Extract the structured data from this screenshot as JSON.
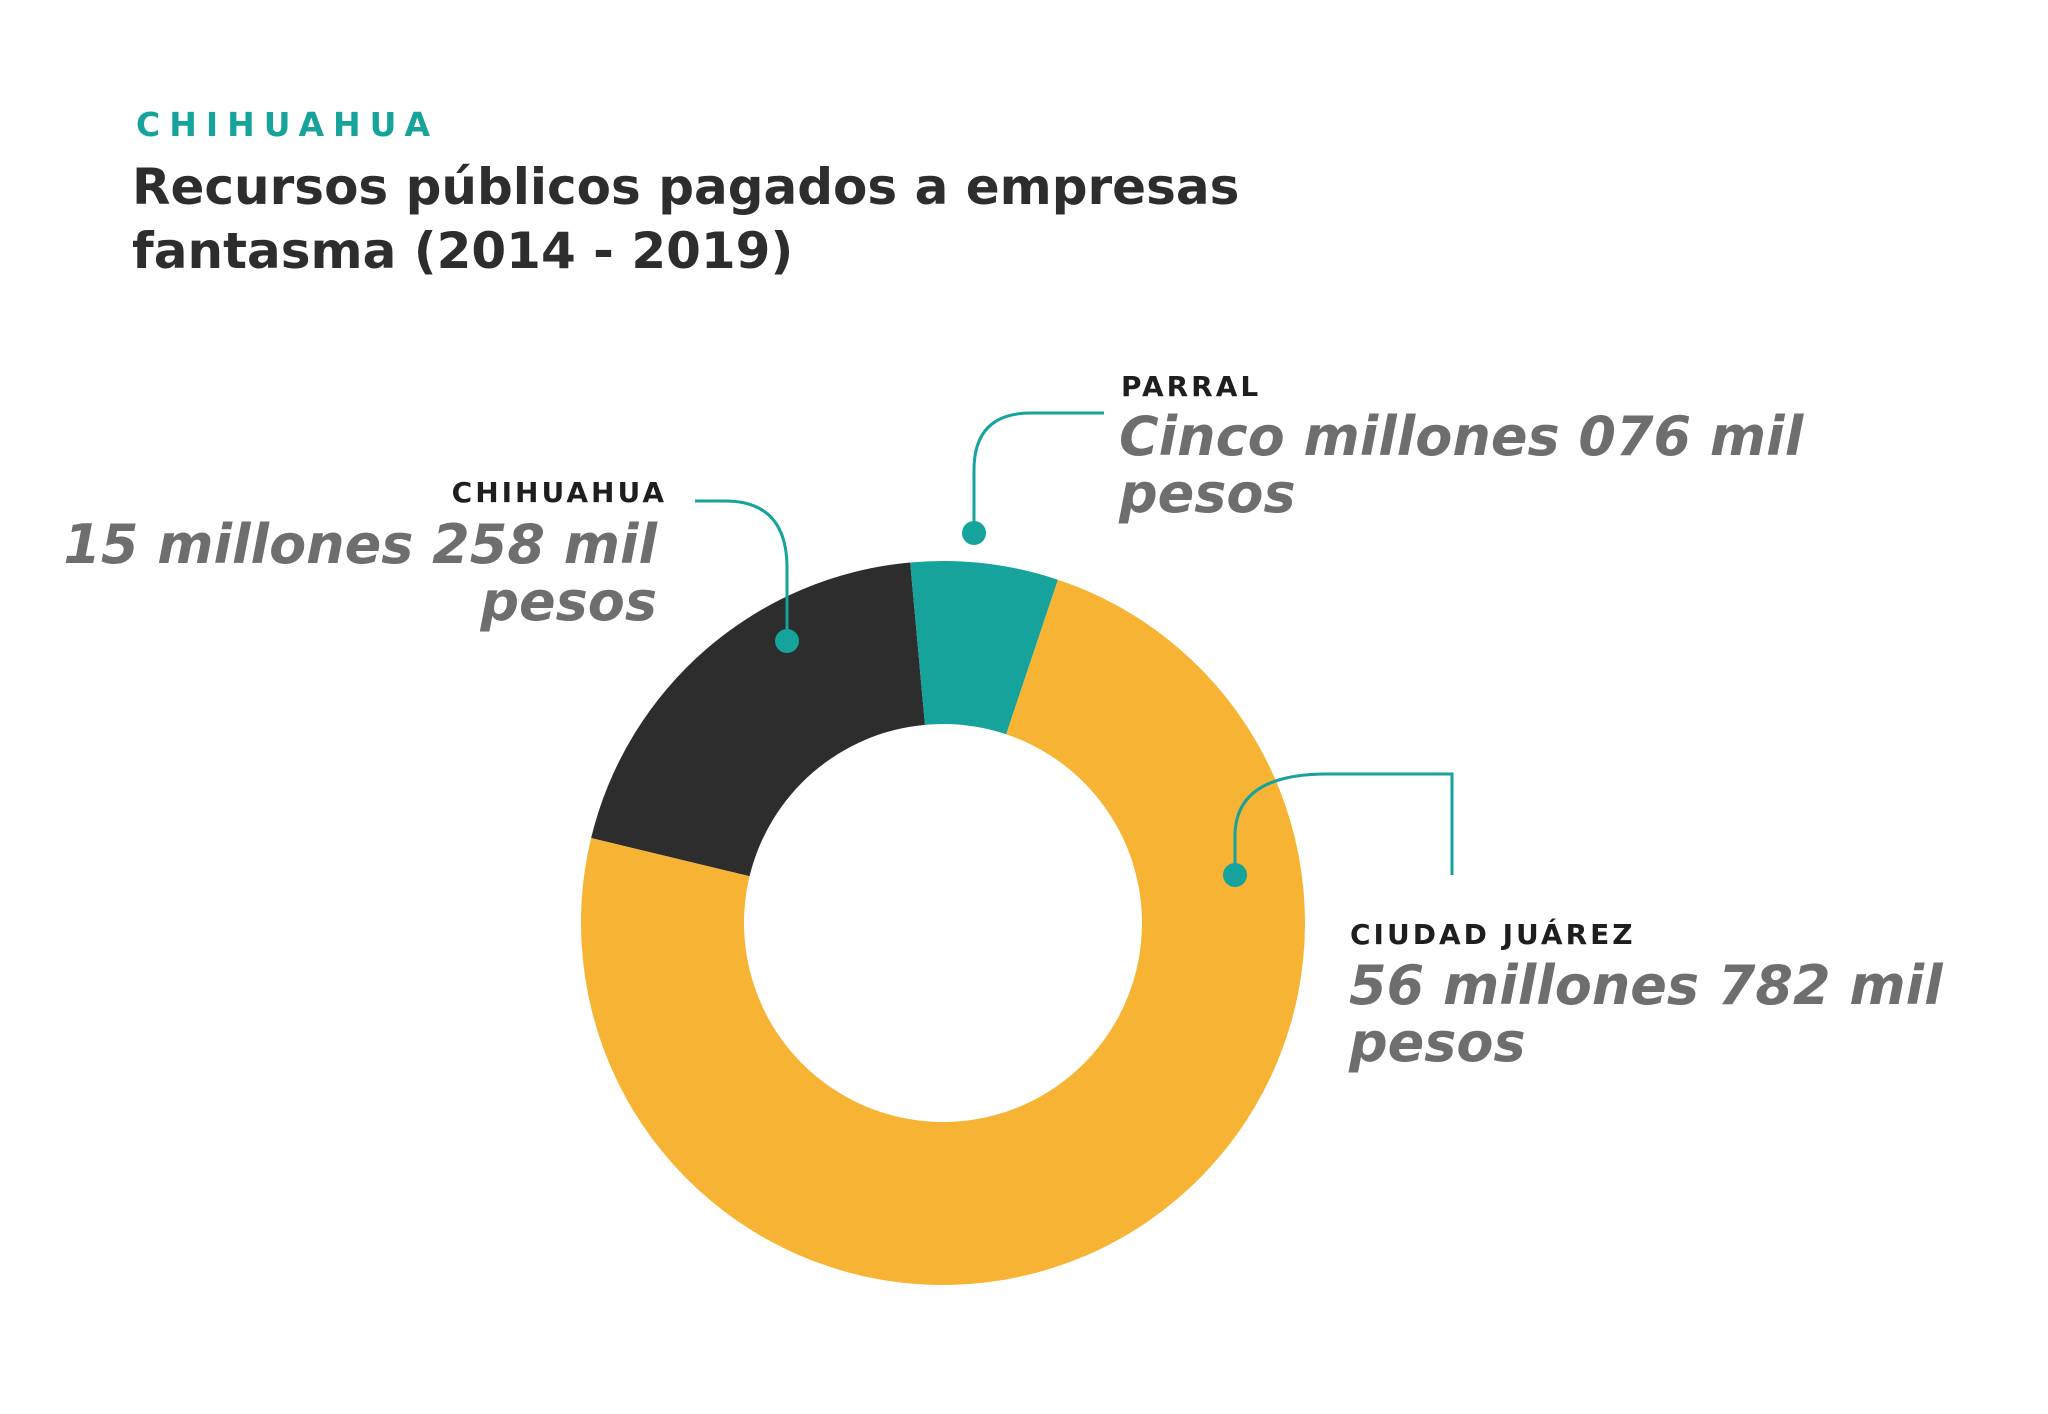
{
  "header": {
    "region": "CHIHUAHUA"
  },
  "chart_data": {
    "type": "donut",
    "title": "Recursos públicos pagados a empresas fantasma (2014 - 2019)",
    "categories": [
      "PARRAL",
      "CIUDAD JUÁREZ",
      "CHIHUAHUA"
    ],
    "values": [
      5076000,
      56782000,
      15258000
    ],
    "value_labels": [
      "Cinco millones 076 mil pesos",
      "56 millones 782 mil pesos",
      "15 millones 258 mil pesos"
    ],
    "colors": [
      "#15a39b",
      "#f7b334",
      "#2d2d2d"
    ]
  }
}
